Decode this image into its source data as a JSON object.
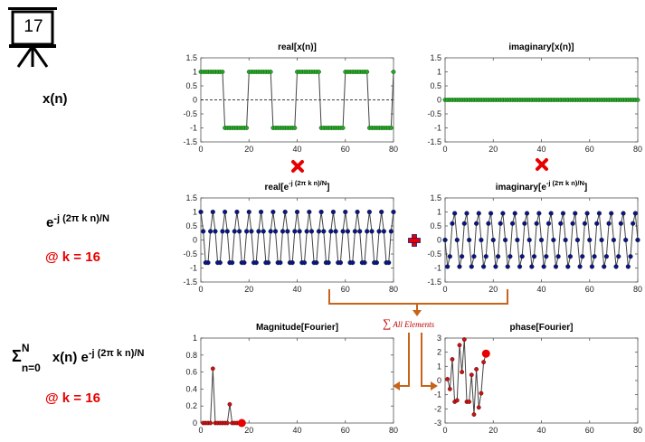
{
  "slide_number": "17",
  "labels": {
    "xn": "x(n)",
    "exp_base": "e",
    "exp_sup": "-j (2π k n)/N",
    "k_label_1": "@ k = 16",
    "sum_sigma": "Σ",
    "sum_sup": "N",
    "sum_sub": "n=0",
    "sum_body": "x(n) e",
    "sum_exp": "-j (2π k n)/N",
    "k_label_2": "@ k = 16",
    "all_elements": "All Elements",
    "sum_icon": "∑"
  },
  "colors": {
    "green": "#22aa22",
    "navy": "#10108a",
    "red": "#e80000",
    "orange": "#c8641a",
    "darkred": "#8b0000"
  },
  "chart_data": [
    {
      "type": "line",
      "title": "real[x(n)]",
      "xlim": [
        0,
        80
      ],
      "ylim": [
        -1.5,
        1.5
      ],
      "xticks": [
        "0",
        "20",
        "40",
        "60",
        "80"
      ],
      "yticks": [
        "1.5",
        "1",
        "0.5",
        "0",
        "-0.5",
        "-1",
        "-1.5"
      ],
      "zero_line": true,
      "description": "square wave, period 20",
      "x_start": 0,
      "x_end": 80,
      "pattern": "square",
      "amplitude": 1,
      "period": 20,
      "high_count": 10
    },
    {
      "type": "line",
      "title": "imaginary[x(n)]",
      "xlim": [
        0,
        80
      ],
      "ylim": [
        -1.5,
        1.5
      ],
      "xticks": [
        "0",
        "20",
        "40",
        "60",
        "80"
      ],
      "yticks": [
        "1.5",
        "1",
        "0.5",
        "0",
        "-0.5",
        "-1",
        "-1.5"
      ],
      "zero_line": true,
      "x_start": 0,
      "x_end": 80,
      "pattern": "zero"
    },
    {
      "type": "line",
      "title_base": "real[e",
      "title_sup": "-j (2π k n)/N",
      "title_end": "]",
      "xlim": [
        0,
        80
      ],
      "ylim": [
        -1.5,
        1.5
      ],
      "xticks": [
        "0",
        "20",
        "40",
        "60",
        "80"
      ],
      "yticks": [
        "1.5",
        "1",
        "0.5",
        "0",
        "-0.5",
        "-1",
        "-1.5"
      ],
      "x_start": 0,
      "x_end": 80,
      "pattern": "cos",
      "freq": 0.2
    },
    {
      "type": "line",
      "title_base": "imaginary[e",
      "title_sup": "-j (2π k n)/N",
      "title_end": "]",
      "xlim": [
        0,
        80
      ],
      "ylim": [
        -1.5,
        1.5
      ],
      "xticks": [
        "0",
        "20",
        "40",
        "60",
        "80"
      ],
      "yticks": [
        "1.5",
        "1",
        "0.5",
        "0",
        "-0.5",
        "-1",
        "-1.5"
      ],
      "x_start": 0,
      "x_end": 80,
      "pattern": "negsin",
      "freq": 0.2
    },
    {
      "type": "line",
      "title": "Magnitude[Fourier]",
      "xlim": [
        0,
        80
      ],
      "ylim": [
        0,
        1
      ],
      "xticks": [
        "0",
        "20",
        "40",
        "60",
        "80"
      ],
      "yticks": [
        "1",
        "0.8",
        "0.6",
        "0.4",
        "0.2",
        "0"
      ],
      "x": [
        1,
        2,
        3,
        4,
        5,
        6,
        7,
        8,
        9,
        10,
        11,
        12,
        13,
        14,
        15,
        16,
        17
      ],
      "y": [
        0,
        0,
        0,
        0,
        0.64,
        0,
        0,
        0,
        0,
        0,
        0,
        0.22,
        0,
        0,
        0,
        0,
        0
      ],
      "highlight_x": 17,
      "highlight_y": 0
    },
    {
      "type": "line",
      "title": "phase[Fourier]",
      "xlim": [
        0,
        80
      ],
      "ylim": [
        -3,
        3
      ],
      "xticks": [
        "0",
        "20",
        "40",
        "60",
        "80"
      ],
      "yticks": [
        "3",
        "2",
        "1",
        "0",
        "-1",
        "-2",
        "-3"
      ],
      "x": [
        1,
        2,
        3,
        4,
        5,
        6,
        7,
        8,
        9,
        10,
        11,
        12,
        13,
        14,
        15,
        16,
        17
      ],
      "y": [
        0.1,
        -0.6,
        1.5,
        -1.5,
        -1.4,
        2.5,
        0.6,
        2.9,
        -1.5,
        -1.5,
        0.4,
        -2.4,
        0.8,
        -1.9,
        -0.9,
        1.3,
        1.9
      ],
      "highlight_x": 17,
      "highlight_y": 1.9
    }
  ]
}
